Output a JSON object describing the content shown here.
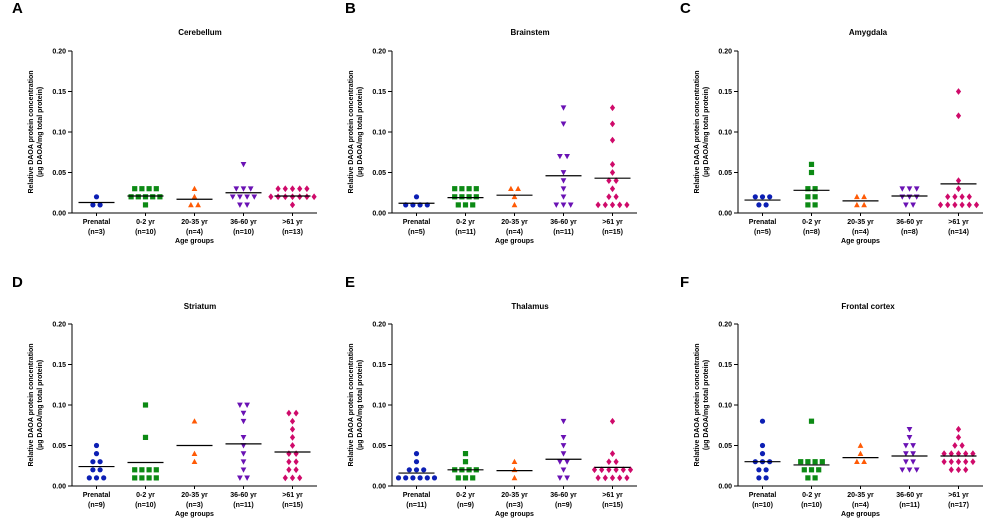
{
  "figure": {
    "colors": {
      "Prenatal": "#0c1fb4",
      "0-2 yr": "#0c8a14",
      "20-35 yr": "#ff5a05",
      "36-60 yr": "#6a12b4",
      "61": "#cf0a6a",
      "mean_line": "#000000",
      "axis": "#000000"
    },
    "markers": [
      "circle",
      "square",
      "triangle-up",
      "triangle-down",
      "diamond"
    ]
  },
  "chart_data": [
    {
      "panel": "A",
      "title": "Cerebellum",
      "type": "scatter",
      "ylabel_line1": "Relative DAOA protein concentration",
      "ylabel_line2": "(µg DAOA/mg total protein)",
      "xlabel": "Age groups",
      "ylim": [
        0,
        0.2
      ],
      "yticks": [
        "0.00",
        "0.05",
        "0.10",
        "0.15",
        "0.20"
      ],
      "groups": [
        {
          "name": "Prenatal",
          "n": "(n=3)",
          "means": 0.013,
          "values": [
            0.01,
            0.01,
            0.02
          ]
        },
        {
          "name": "0-2 yr",
          "n": "(n=10)",
          "means": 0.021,
          "values": [
            0.01,
            0.02,
            0.02,
            0.02,
            0.02,
            0.02,
            0.03,
            0.03,
            0.03,
            0.03
          ]
        },
        {
          "name": "20-35 yr",
          "n": "(n=4)",
          "means": 0.017,
          "values": [
            0.01,
            0.01,
            0.02,
            0.03
          ]
        },
        {
          "name": "36-60 yr",
          "n": "(n=10)",
          "means": 0.025,
          "values": [
            0.01,
            0.01,
            0.02,
            0.02,
            0.02,
            0.02,
            0.03,
            0.03,
            0.03,
            0.06
          ]
        },
        {
          "name": ">61 yr",
          "n": "(n=13)",
          "means": 0.021,
          "values": [
            0.01,
            0.02,
            0.02,
            0.02,
            0.02,
            0.02,
            0.02,
            0.02,
            0.03,
            0.03,
            0.03,
            0.03,
            0.03
          ]
        }
      ]
    },
    {
      "panel": "B",
      "title": "Brainstem",
      "type": "scatter",
      "ylabel_line1": "Relative DAOA protein concentration",
      "ylabel_line2": "(µg DAOA/mg total protein)",
      "xlabel": "Age groups",
      "ylim": [
        0,
        0.2
      ],
      "yticks": [
        "0.00",
        "0.05",
        "0.10",
        "0.15",
        "0.20"
      ],
      "groups": [
        {
          "name": "Prenatal",
          "n": "(n=5)",
          "means": 0.012,
          "values": [
            0.01,
            0.01,
            0.01,
            0.01,
            0.02
          ]
        },
        {
          "name": "0-2 yr",
          "n": "(n=11)",
          "means": 0.019,
          "values": [
            0.01,
            0.01,
            0.01,
            0.02,
            0.02,
            0.02,
            0.02,
            0.03,
            0.03,
            0.03,
            0.03
          ]
        },
        {
          "name": "20-35 yr",
          "n": "(n=4)",
          "means": 0.022,
          "values": [
            0.01,
            0.02,
            0.03,
            0.03
          ]
        },
        {
          "name": "36-60 yr",
          "n": "(n=11)",
          "means": 0.046,
          "values": [
            0.01,
            0.01,
            0.01,
            0.02,
            0.03,
            0.04,
            0.05,
            0.07,
            0.07,
            0.11,
            0.13
          ]
        },
        {
          "name": ">61 yr",
          "n": "(n=15)",
          "means": 0.043,
          "values": [
            0.01,
            0.01,
            0.01,
            0.01,
            0.01,
            0.02,
            0.02,
            0.03,
            0.04,
            0.04,
            0.05,
            0.06,
            0.09,
            0.11,
            0.13
          ]
        }
      ]
    },
    {
      "panel": "C",
      "title": "Amygdala",
      "type": "scatter",
      "ylabel_line1": "Relative DAOA protein concentration",
      "ylabel_line2": "(µg DAOA/mg total protein)",
      "xlabel": "Age groups",
      "ylim": [
        0,
        0.2
      ],
      "yticks": [
        "0.00",
        "0.05",
        "0.10",
        "0.15",
        "0.20"
      ],
      "groups": [
        {
          "name": "Prenatal",
          "n": "(n=5)",
          "means": 0.016,
          "values": [
            0.01,
            0.01,
            0.02,
            0.02,
            0.02
          ]
        },
        {
          "name": "0-2 yr",
          "n": "(n=8)",
          "means": 0.028,
          "values": [
            0.01,
            0.01,
            0.02,
            0.02,
            0.03,
            0.03,
            0.05,
            0.06
          ]
        },
        {
          "name": "20-35 yr",
          "n": "(n=4)",
          "means": 0.015,
          "values": [
            0.01,
            0.01,
            0.02,
            0.02
          ]
        },
        {
          "name": "36-60 yr",
          "n": "(n=8)",
          "means": 0.021,
          "values": [
            0.01,
            0.01,
            0.02,
            0.02,
            0.02,
            0.03,
            0.03,
            0.03
          ]
        },
        {
          "name": ">61 yr",
          "n": "(n=14)",
          "means": 0.036,
          "values": [
            0.01,
            0.01,
            0.01,
            0.01,
            0.01,
            0.01,
            0.02,
            0.02,
            0.02,
            0.02,
            0.03,
            0.04,
            0.12,
            0.15
          ]
        }
      ]
    },
    {
      "panel": "D",
      "title": "Striatum",
      "type": "scatter",
      "ylabel_line1": "Relative DAOA protein concentration",
      "ylabel_line2": "(µg DAOA/mg total protein)",
      "xlabel": "Age groups",
      "ylim": [
        0,
        0.2
      ],
      "yticks": [
        "0.00",
        "0.05",
        "0.10",
        "0.15",
        "0.20"
      ],
      "groups": [
        {
          "name": "Prenatal",
          "n": "(n=9)",
          "means": 0.024,
          "values": [
            0.01,
            0.01,
            0.01,
            0.02,
            0.02,
            0.03,
            0.03,
            0.04,
            0.05
          ]
        },
        {
          "name": "0-2 yr",
          "n": "(n=10)",
          "means": 0.029,
          "values": [
            0.01,
            0.01,
            0.01,
            0.01,
            0.02,
            0.02,
            0.02,
            0.02,
            0.06,
            0.1
          ]
        },
        {
          "name": "20-35 yr",
          "n": "(n=3)",
          "means": 0.05,
          "values": [
            0.03,
            0.04,
            0.08
          ]
        },
        {
          "name": "36-60 yr",
          "n": "(n=11)",
          "means": 0.052,
          "values": [
            0.01,
            0.01,
            0.02,
            0.03,
            0.04,
            0.05,
            0.06,
            0.08,
            0.09,
            0.1,
            0.1
          ]
        },
        {
          "name": ">61 yr",
          "n": "(n=15)",
          "means": 0.042,
          "values": [
            0.01,
            0.01,
            0.01,
            0.02,
            0.02,
            0.03,
            0.03,
            0.04,
            0.04,
            0.05,
            0.06,
            0.07,
            0.08,
            0.09,
            0.09
          ]
        }
      ]
    },
    {
      "panel": "E",
      "title": "Thalamus",
      "type": "scatter",
      "ylabel_line1": "Relative DAOA protein concentration",
      "ylabel_line2": "(µg DAOA/mg total protein)",
      "xlabel": "Age groups",
      "ylim": [
        0,
        0.2
      ],
      "yticks": [
        "0.00",
        "0.05",
        "0.10",
        "0.15",
        "0.20"
      ],
      "groups": [
        {
          "name": "Prenatal",
          "n": "(n=11)",
          "means": 0.016,
          "values": [
            0.01,
            0.01,
            0.01,
            0.01,
            0.01,
            0.01,
            0.02,
            0.02,
            0.02,
            0.03,
            0.04
          ]
        },
        {
          "name": "0-2 yr",
          "n": "(n=9)",
          "means": 0.02,
          "values": [
            0.01,
            0.01,
            0.01,
            0.02,
            0.02,
            0.02,
            0.02,
            0.03,
            0.04
          ]
        },
        {
          "name": "20-35 yr",
          "n": "(n=3)",
          "means": 0.019,
          "values": [
            0.01,
            0.02,
            0.03
          ]
        },
        {
          "name": "36-60 yr",
          "n": "(n=9)",
          "means": 0.033,
          "values": [
            0.01,
            0.01,
            0.02,
            0.03,
            0.03,
            0.04,
            0.05,
            0.06,
            0.08
          ]
        },
        {
          "name": ">61 yr",
          "n": "(n=15)",
          "means": 0.023,
          "values": [
            0.01,
            0.01,
            0.01,
            0.01,
            0.01,
            0.02,
            0.02,
            0.02,
            0.02,
            0.02,
            0.02,
            0.03,
            0.03,
            0.04,
            0.08
          ]
        }
      ]
    },
    {
      "panel": "F",
      "title": "Frontal cortex",
      "type": "scatter",
      "ylabel_line1": "Relative DAOA protein concentration",
      "ylabel_line2": "(µg DAOA/mg total protein)",
      "xlabel": "Age groups",
      "ylim": [
        0,
        0.2
      ],
      "yticks": [
        "0.00",
        "0.05",
        "0.10",
        "0.15",
        "0.20"
      ],
      "groups": [
        {
          "name": "Prenatal",
          "n": "(n=10)",
          "means": 0.03,
          "values": [
            0.01,
            0.01,
            0.02,
            0.02,
            0.03,
            0.03,
            0.03,
            0.04,
            0.05,
            0.08
          ]
        },
        {
          "name": "0-2 yr",
          "n": "(n=10)",
          "means": 0.026,
          "values": [
            0.01,
            0.01,
            0.02,
            0.02,
            0.02,
            0.03,
            0.03,
            0.03,
            0.03,
            0.08
          ]
        },
        {
          "name": "20-35 yr",
          "n": "(n=4)",
          "means": 0.035,
          "values": [
            0.03,
            0.03,
            0.04,
            0.05
          ]
        },
        {
          "name": "36-60 yr",
          "n": "(n=11)",
          "means": 0.037,
          "values": [
            0.02,
            0.02,
            0.02,
            0.03,
            0.03,
            0.04,
            0.04,
            0.05,
            0.05,
            0.06,
            0.07
          ]
        },
        {
          "name": ">61 yr",
          "n": "(n=17)",
          "means": 0.037,
          "values": [
            0.02,
            0.02,
            0.02,
            0.03,
            0.03,
            0.03,
            0.03,
            0.03,
            0.04,
            0.04,
            0.04,
            0.04,
            0.04,
            0.05,
            0.05,
            0.06,
            0.07
          ]
        }
      ]
    }
  ]
}
